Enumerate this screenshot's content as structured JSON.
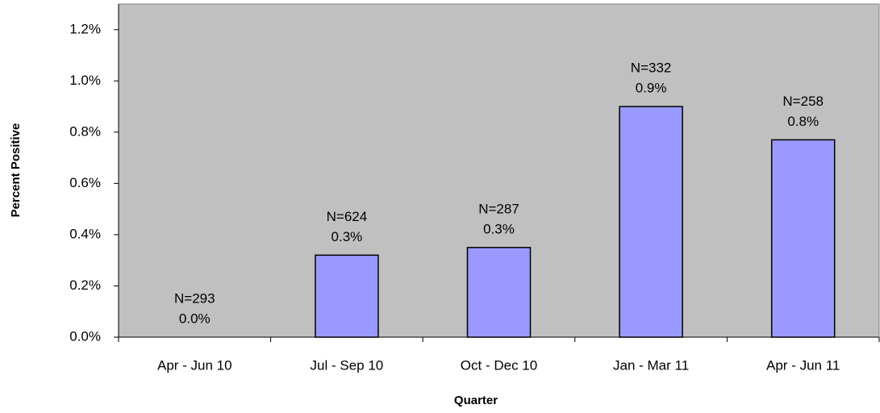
{
  "chart_data": {
    "type": "bar",
    "x_label": "Quarter",
    "y_label": "Percent Positive",
    "categories": [
      "Apr - Jun 10",
      "Jul - Sep 10",
      "Oct - Dec 10",
      "Jan - Mar 11",
      "Apr - Jun 11"
    ],
    "values": [
      0.0,
      0.32,
      0.35,
      0.9,
      0.77
    ],
    "value_labels": [
      "0.0%",
      "0.3%",
      "0.3%",
      "0.9%",
      "0.8%"
    ],
    "n_labels": [
      "N=293",
      "N=624",
      "N=287",
      "N=332",
      "N=258"
    ],
    "color": "#9999ff",
    "plot_background": "#c0c0c0",
    "ylim": [
      0,
      1.3
    ],
    "yticks": [
      {
        "value": 0,
        "label": "0.0%"
      },
      {
        "value": 0.2,
        "label": "0.2%"
      },
      {
        "value": 0.4,
        "label": "0.4%"
      },
      {
        "value": 0.6,
        "label": "0.6%"
      },
      {
        "value": 0.8,
        "label": "0.8%"
      },
      {
        "value": 1.0,
        "label": "1.0%"
      },
      {
        "value": 1.2,
        "label": "1.2%"
      }
    ],
    "grid": false
  }
}
